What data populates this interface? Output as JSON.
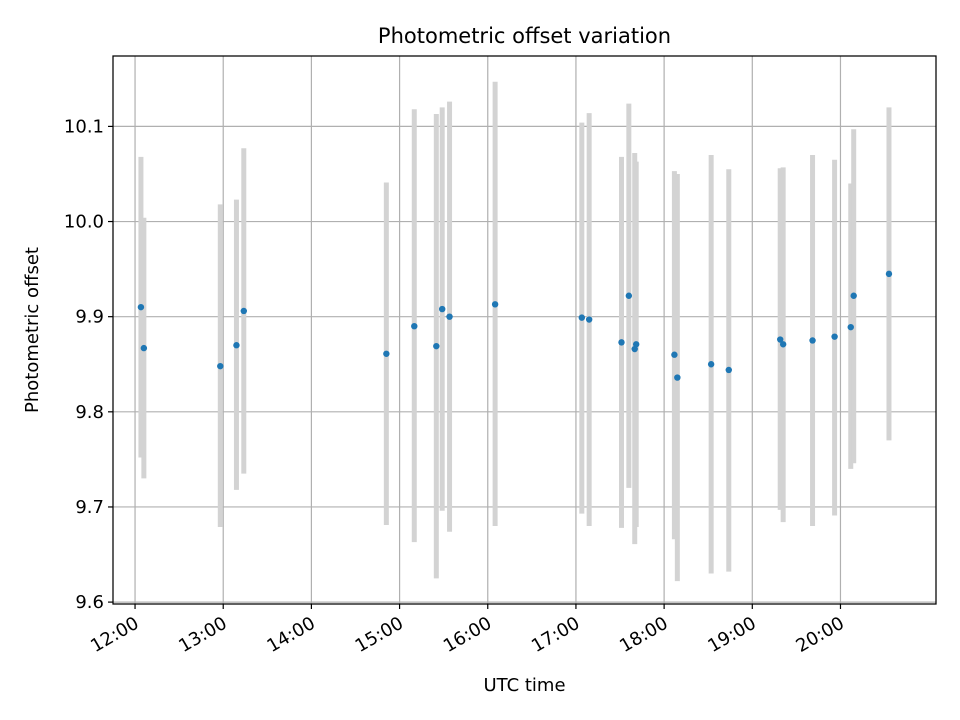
{
  "chart_data": {
    "type": "scatter",
    "title": "Photometric offset variation",
    "xlabel": "UTC time",
    "ylabel": "Photometric offset",
    "x_unit": "hours UTC",
    "xlim": [
      "11:45",
      "21:05"
    ],
    "ylim": [
      9.598,
      10.174
    ],
    "grid": true,
    "x_ticks": [
      "12:00",
      "13:00",
      "14:00",
      "15:00",
      "16:00",
      "17:00",
      "18:00",
      "19:00",
      "20:00"
    ],
    "y_ticks": [
      "9.6",
      "9.7",
      "9.8",
      "9.9",
      "10.0",
      "10.1"
    ],
    "colors": {
      "point": "#1f77b4",
      "errorbar": "#d3d3d3",
      "grid": "#b0b0b0"
    },
    "points": [
      {
        "x": "12:04",
        "y": 9.91,
        "err_low": 9.752,
        "err_high": 10.068
      },
      {
        "x": "12:06",
        "y": 9.867,
        "err_low": 9.73,
        "err_high": 10.004
      },
      {
        "x": "12:58",
        "y": 9.848,
        "err_low": 9.679,
        "err_high": 10.018
      },
      {
        "x": "13:09",
        "y": 9.87,
        "err_low": 9.718,
        "err_high": 10.023
      },
      {
        "x": "13:14",
        "y": 9.906,
        "err_low": 9.735,
        "err_high": 10.077
      },
      {
        "x": "14:51",
        "y": 9.861,
        "err_low": 9.681,
        "err_high": 10.041
      },
      {
        "x": "15:10",
        "y": 9.89,
        "err_low": 9.663,
        "err_high": 10.118
      },
      {
        "x": "15:25",
        "y": 9.869,
        "err_low": 9.625,
        "err_high": 10.113
      },
      {
        "x": "15:29",
        "y": 9.908,
        "err_low": 9.696,
        "err_high": 10.12
      },
      {
        "x": "15:34",
        "y": 9.9,
        "err_low": 9.674,
        "err_high": 10.126
      },
      {
        "x": "16:05",
        "y": 9.913,
        "err_low": 9.68,
        "err_high": 10.147
      },
      {
        "x": "17:04",
        "y": 9.899,
        "err_low": 9.693,
        "err_high": 10.104
      },
      {
        "x": "17:09",
        "y": 9.897,
        "err_low": 9.68,
        "err_high": 10.114
      },
      {
        "x": "17:31",
        "y": 9.873,
        "err_low": 9.678,
        "err_high": 10.068
      },
      {
        "x": "17:36",
        "y": 9.922,
        "err_low": 9.72,
        "err_high": 10.124
      },
      {
        "x": "17:40",
        "y": 9.866,
        "err_low": 9.661,
        "err_high": 10.072
      },
      {
        "x": "17:41",
        "y": 9.871,
        "err_low": 9.679,
        "err_high": 10.063
      },
      {
        "x": "18:07",
        "y": 9.86,
        "err_low": 9.666,
        "err_high": 10.053
      },
      {
        "x": "18:09",
        "y": 9.836,
        "err_low": 9.622,
        "err_high": 10.05
      },
      {
        "x": "18:32",
        "y": 9.85,
        "err_low": 9.63,
        "err_high": 10.07
      },
      {
        "x": "18:44",
        "y": 9.844,
        "err_low": 9.632,
        "err_high": 10.055
      },
      {
        "x": "19:19",
        "y": 9.876,
        "err_low": 9.697,
        "err_high": 10.056
      },
      {
        "x": "19:21",
        "y": 9.871,
        "err_low": 9.684,
        "err_high": 10.057
      },
      {
        "x": "19:41",
        "y": 9.875,
        "err_low": 9.68,
        "err_high": 10.07
      },
      {
        "x": "19:56",
        "y": 9.879,
        "err_low": 9.691,
        "err_high": 10.065
      },
      {
        "x": "20:07",
        "y": 9.889,
        "err_low": 9.74,
        "err_high": 10.04
      },
      {
        "x": "20:09",
        "y": 9.922,
        "err_low": 9.746,
        "err_high": 10.097
      },
      {
        "x": "20:33",
        "y": 9.945,
        "err_low": 9.77,
        "err_high": 10.12
      }
    ]
  }
}
